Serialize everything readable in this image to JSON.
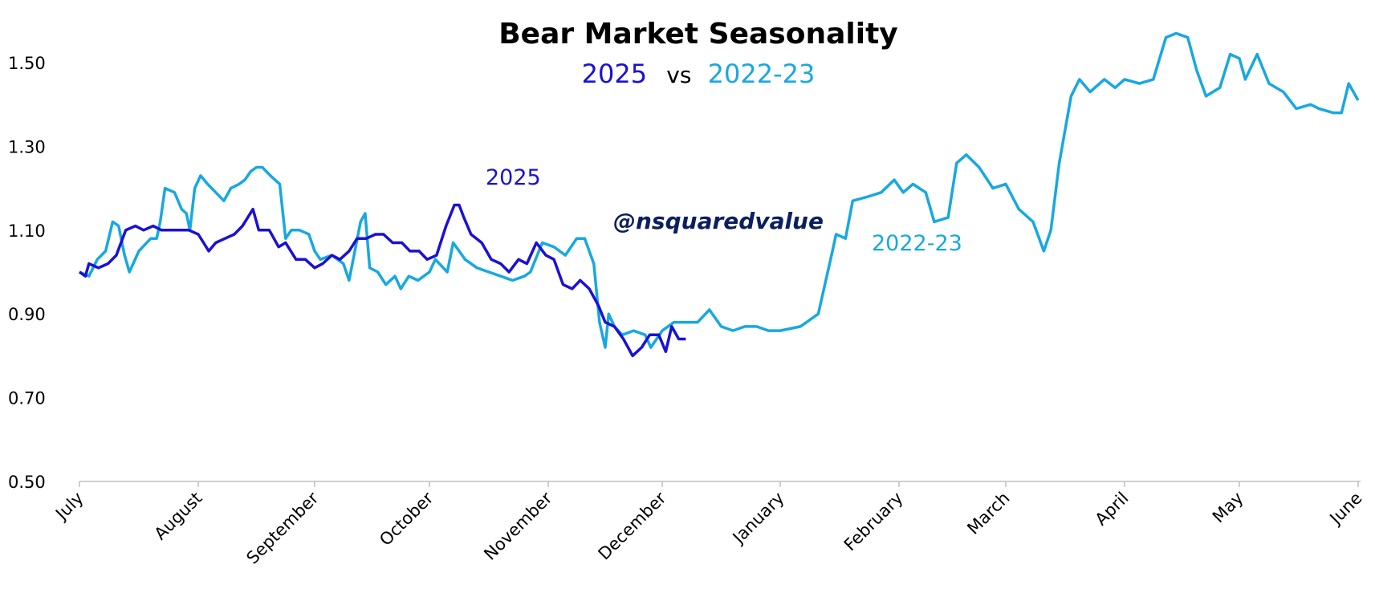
{
  "chart_data": {
    "type": "line",
    "title": "Bear Market Seasonality",
    "subtitle": {
      "part1": "2025",
      "sep": "vs",
      "part2": "2022-23"
    },
    "watermark": "@nsquaredvalue",
    "xlabel": "",
    "ylabel": "",
    "ylim": [
      0.5,
      1.6
    ],
    "yticks": [
      "0.50",
      "0.70",
      "0.90",
      "1.10",
      "1.30",
      "1.50"
    ],
    "ytick_values": [
      0.5,
      0.7,
      0.9,
      1.1,
      1.3,
      1.5
    ],
    "xticks": [
      "July",
      "August",
      "September",
      "October",
      "November",
      "December",
      "January",
      "February",
      "March",
      "April",
      "May",
      "June"
    ],
    "x_unit": "months since July (tick index)",
    "grid": false,
    "colors": {
      "2025": "#1a10d6",
      "2022-23": "#18a8e0",
      "watermark": "#0b1f5e"
    },
    "series": [
      {
        "name": "2022-23",
        "color": "#18a8e0",
        "x": [
          0,
          0.08,
          0.15,
          0.22,
          0.28,
          0.33,
          0.38,
          0.42,
          0.5,
          0.6,
          0.65,
          0.68,
          0.72,
          0.8,
          0.86,
          0.9,
          0.93,
          0.97,
          1.02,
          1.08,
          1.15,
          1.22,
          1.28,
          1.35,
          1.4,
          1.45,
          1.5,
          1.55,
          1.62,
          1.7,
          1.75,
          1.8,
          1.87,
          1.95,
          2.0,
          2.05,
          2.15,
          2.25,
          2.3,
          2.35,
          2.4,
          2.44,
          2.48,
          2.55,
          2.62,
          2.7,
          2.75,
          2.82,
          2.9,
          3.0,
          3.05,
          3.15,
          3.2,
          3.3,
          3.4,
          3.5,
          3.6,
          3.7,
          3.8,
          3.85,
          3.95,
          4.05,
          4.15,
          4.25,
          4.32,
          4.4,
          4.45,
          4.5,
          4.53,
          4.58,
          4.65,
          4.75,
          4.85,
          4.9,
          5.0,
          5.1,
          5.2,
          5.3,
          5.4,
          5.5,
          5.6,
          5.7,
          5.8,
          5.9,
          6.0,
          6.17,
          6.32,
          6.44,
          6.47,
          6.55,
          6.61,
          6.74,
          6.85,
          6.96,
          7.04,
          7.13,
          7.25,
          7.33,
          7.46,
          7.54,
          7.63,
          7.75,
          7.88,
          8.0,
          8.11,
          8.23,
          8.32,
          8.38,
          8.45,
          8.55,
          8.62,
          8.71,
          8.83,
          8.92,
          9.0,
          9.13,
          9.25,
          9.36,
          9.45,
          9.55,
          9.63,
          9.71,
          9.83,
          9.92,
          10.0,
          10.05,
          10.15,
          10.25,
          10.37,
          10.48,
          10.6,
          10.67,
          10.79,
          10.86,
          10.92,
          11.0
        ],
        "y": [
          1.0,
          0.99,
          1.03,
          1.05,
          1.12,
          1.11,
          1.04,
          1.0,
          1.05,
          1.08,
          1.08,
          1.12,
          1.2,
          1.19,
          1.15,
          1.14,
          1.1,
          1.2,
          1.23,
          1.21,
          1.19,
          1.17,
          1.2,
          1.21,
          1.22,
          1.24,
          1.25,
          1.25,
          1.23,
          1.21,
          1.08,
          1.1,
          1.1,
          1.09,
          1.05,
          1.03,
          1.04,
          1.02,
          0.98,
          1.05,
          1.12,
          1.14,
          1.01,
          1.0,
          0.97,
          0.99,
          0.96,
          0.99,
          0.98,
          1.0,
          1.03,
          1.0,
          1.07,
          1.03,
          1.01,
          1.0,
          0.99,
          0.98,
          0.99,
          1.0,
          1.07,
          1.06,
          1.04,
          1.08,
          1.08,
          1.02,
          0.88,
          0.82,
          0.9,
          0.87,
          0.85,
          0.86,
          0.85,
          0.82,
          0.86,
          0.88,
          0.88,
          0.88,
          0.91,
          0.87,
          0.86,
          0.87,
          0.87,
          0.86,
          0.86,
          0.87,
          0.9,
          1.05,
          1.09,
          1.08,
          1.17,
          1.18,
          1.19,
          1.22,
          1.19,
          1.21,
          1.19,
          1.12,
          1.13,
          1.26,
          1.28,
          1.25,
          1.2,
          1.21,
          1.15,
          1.12,
          1.05,
          1.1,
          1.26,
          1.42,
          1.46,
          1.43,
          1.46,
          1.44,
          1.46,
          1.45,
          1.46,
          1.56,
          1.57,
          1.56,
          1.48,
          1.42,
          1.44,
          1.52,
          1.51,
          1.46,
          1.52,
          1.45,
          1.43,
          1.39,
          1.4,
          1.39,
          1.38,
          1.38,
          1.45,
          1.41
        ]
      },
      {
        "name": "2025",
        "color": "#1a10d6",
        "x": [
          0,
          0.05,
          0.08,
          0.16,
          0.24,
          0.31,
          0.39,
          0.47,
          0.54,
          0.62,
          0.69,
          0.77,
          0.85,
          0.92,
          1.0,
          1.09,
          1.15,
          1.23,
          1.31,
          1.38,
          1.47,
          1.52,
          1.61,
          1.69,
          1.75,
          1.84,
          1.92,
          2.0,
          2.07,
          2.15,
          2.22,
          2.3,
          2.37,
          2.45,
          2.53,
          2.6,
          2.68,
          2.76,
          2.83,
          2.91,
          2.98,
          3.06,
          3.14,
          3.21,
          3.25,
          3.29,
          3.35,
          3.44,
          3.52,
          3.6,
          3.67,
          3.75,
          3.82,
          3.9,
          3.98,
          4.05,
          4.13,
          4.21,
          4.28,
          4.36,
          4.44,
          4.5,
          4.58,
          4.66,
          4.74,
          4.82,
          4.89,
          4.97,
          5.03,
          5.08,
          5.14,
          5.2
        ],
        "y": [
          1.0,
          0.99,
          1.02,
          1.01,
          1.02,
          1.04,
          1.1,
          1.11,
          1.1,
          1.11,
          1.1,
          1.1,
          1.1,
          1.1,
          1.09,
          1.05,
          1.07,
          1.08,
          1.09,
          1.11,
          1.15,
          1.1,
          1.1,
          1.06,
          1.07,
          1.03,
          1.03,
          1.01,
          1.02,
          1.04,
          1.03,
          1.05,
          1.08,
          1.08,
          1.09,
          1.09,
          1.07,
          1.07,
          1.05,
          1.05,
          1.03,
          1.04,
          1.11,
          1.16,
          1.16,
          1.13,
          1.09,
          1.07,
          1.03,
          1.02,
          1.0,
          1.03,
          1.02,
          1.07,
          1.04,
          1.03,
          0.97,
          0.96,
          0.98,
          0.96,
          0.92,
          0.88,
          0.87,
          0.84,
          0.8,
          0.82,
          0.85,
          0.85,
          0.81,
          0.87,
          0.84,
          0.84
        ]
      }
    ],
    "annotations": [
      {
        "text": "2025",
        "series": "2025"
      },
      {
        "text": "2022-23",
        "series": "2022-23"
      }
    ]
  }
}
